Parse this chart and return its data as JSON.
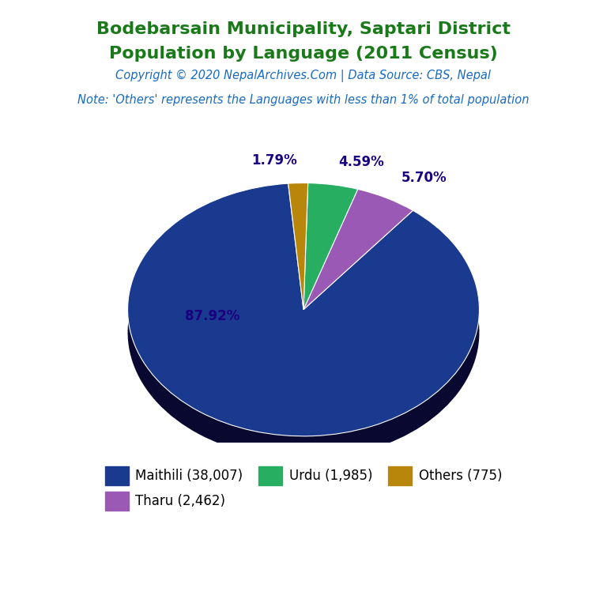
{
  "title_line1": "Bodebarsain Municipality, Saptari District",
  "title_line2": "Population by Language (2011 Census)",
  "title_color": "#1a7a1a",
  "copyright_text": "Copyright © 2020 NepalArchives.Com | Data Source: CBS, Nepal",
  "copyright_color": "#1a6bbf",
  "note_text": "Note: 'Others' represents the Languages with less than 1% of total population",
  "note_color": "#1a6bbf",
  "labels": [
    "Maithili (38,007)",
    "Tharu (2,462)",
    "Urdu (1,985)",
    "Others (775)"
  ],
  "values": [
    38007,
    2462,
    1985,
    775
  ],
  "percentages": [
    "87.92%",
    "5.70%",
    "4.59%",
    "1.79%"
  ],
  "colors": [
    "#1a3a8f",
    "#9b59b6",
    "#27ae60",
    "#b8860b"
  ],
  "shadow_color": "#080830",
  "startangle": 95,
  "autopct_color": "#1a0080",
  "legend_labels": [
    "Maithili (38,007)",
    "Tharu (2,462)",
    "Urdu (1,985)",
    "Others (775)"
  ],
  "legend_colors": [
    "#1a3a8f",
    "#9b59b6",
    "#27ae60",
    "#b8860b"
  ]
}
